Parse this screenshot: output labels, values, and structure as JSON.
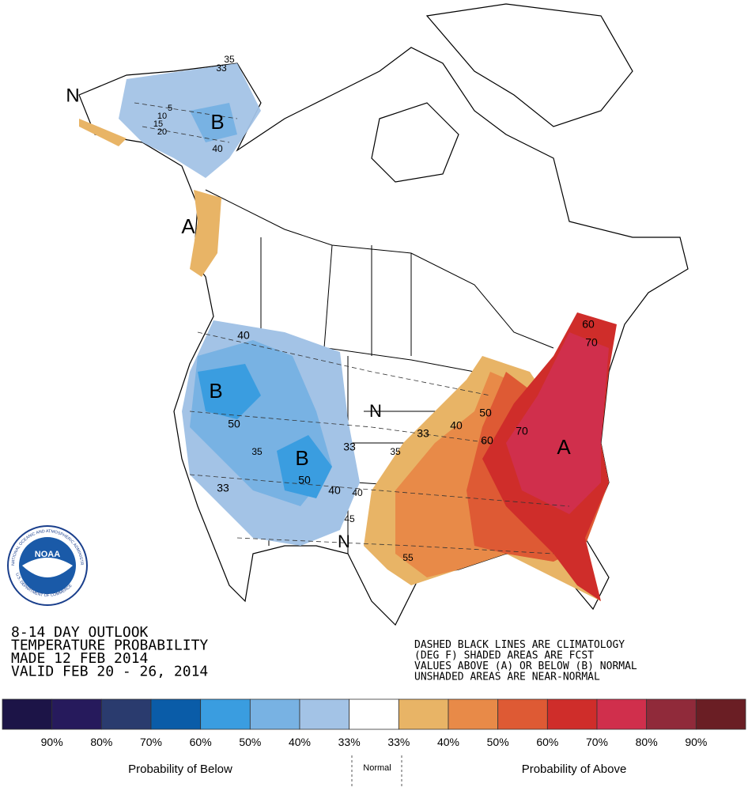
{
  "title": {
    "lines": [
      "8-14 DAY OUTLOOK",
      "TEMPERATURE PROBABILITY",
      "MADE  12 FEB 2014",
      "VALID  FEB 20 - 26, 2014"
    ]
  },
  "notes": {
    "lines": [
      "DASHED BLACK LINES ARE CLIMATOLOGY",
      "(DEG F) SHADED AREAS ARE FCST",
      "VALUES ABOVE (A) OR BELOW (B) NORMAL",
      "UNSHADED AREAS ARE NEAR-NORMAL"
    ]
  },
  "logo": {
    "text": "NOAA",
    "ring_top": "NATIONAL OCEANIC AND ATMOSPHERIC ADMINISTRATION",
    "ring_bottom": "U.S. DEPARTMENT OF COMMERCE"
  },
  "map_labels": [
    "N",
    "35",
    "33",
    "10",
    "5",
    "15",
    "20",
    "B",
    "40",
    "A",
    "40",
    "B",
    "50",
    "35",
    "33",
    "B",
    "50",
    "40",
    "33",
    "35",
    "40",
    "45",
    "N",
    "N",
    "55",
    "33",
    "40",
    "50",
    "60",
    "70",
    "A",
    "60",
    "70"
  ],
  "legend": {
    "colors": [
      "#1c1447",
      "#261a5c",
      "#2a3b6e",
      "#0a5ca8",
      "#3a9de0",
      "#78b2e3",
      "#a3c3e6",
      "#ffffff",
      "#e8b466",
      "#e88a48",
      "#de5a34",
      "#cf2d2a",
      "#d02f4c",
      "#902a3a",
      "#6a1e24"
    ],
    "below_labels": [
      "90%",
      "80%",
      "70%",
      "60%",
      "50%",
      "40%",
      "33%"
    ],
    "above_labels": [
      "33%",
      "40%",
      "50%",
      "60%",
      "70%",
      "80%",
      "90%"
    ],
    "below_title": "Probability of Below",
    "normal_title": "Normal",
    "above_title": "Probability of Above"
  }
}
